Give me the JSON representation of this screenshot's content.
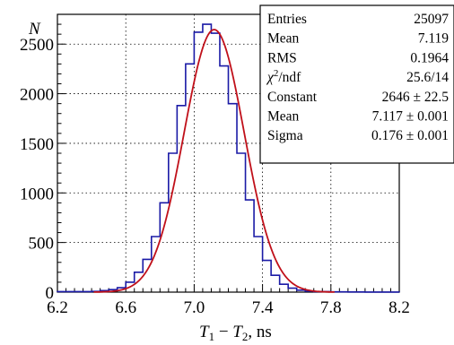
{
  "chart_data": {
    "type": "histogram",
    "x_axis": {
      "label_main": "T",
      "label_sub1": "1",
      "label_minus": " − ",
      "label_main2": "T",
      "label_sub2": "2",
      "label_unit": ", ns",
      "range": [
        6.2,
        8.2
      ],
      "ticks": [
        6.2,
        6.6,
        7.0,
        7.4,
        7.8,
        8.2
      ],
      "tick_labels": [
        "6.2",
        "6.6",
        "7.0",
        "7.4",
        "7.8",
        "8.2"
      ]
    },
    "y_axis": {
      "label": "N",
      "range": [
        0,
        2800
      ],
      "ticks": [
        0,
        500,
        1000,
        1500,
        2000,
        2500
      ],
      "tick_labels": [
        "0",
        "500",
        "1000",
        "1500",
        "2000",
        "2500"
      ]
    },
    "grid": true,
    "bin_width": 0.05,
    "bins_x_start": 6.2,
    "histogram_values": [
      5,
      5,
      5,
      5,
      8,
      15,
      25,
      45,
      100,
      200,
      330,
      560,
      900,
      1400,
      1880,
      2300,
      2620,
      2700,
      2610,
      2280,
      1900,
      1400,
      930,
      560,
      320,
      170,
      80,
      40,
      20,
      10,
      5,
      5,
      3,
      3,
      2,
      2,
      1,
      1,
      1,
      1
    ],
    "fit": {
      "function": "gaus",
      "constant": 2646,
      "mean": 7.117,
      "sigma": 0.176
    },
    "colors": {
      "histogram": "#1a1aa6",
      "fit": "#c0101a"
    },
    "stats_box": {
      "rows": [
        {
          "label": "Entries",
          "value": "25097"
        },
        {
          "label": "Mean",
          "value": "7.119"
        },
        {
          "label": "RMS",
          "value": "0.1964"
        },
        {
          "label_chi": "χ",
          "label_sup": "2",
          "label_rest": "/ndf",
          "value": "25.6/14"
        },
        {
          "label": "Constant",
          "value": "2646 ± 22.5"
        },
        {
          "label": "Mean",
          "value": "7.117 ± 0.001"
        },
        {
          "label": "Sigma",
          "value": "0.176 ± 0.001"
        }
      ]
    }
  }
}
